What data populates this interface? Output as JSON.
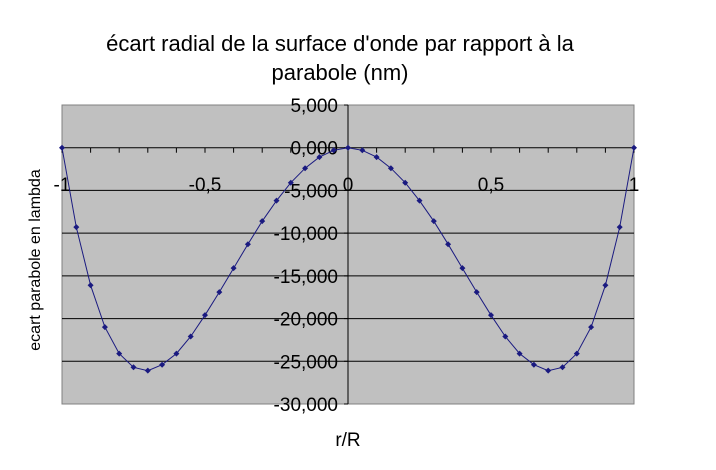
{
  "chart_data": {
    "type": "scatter",
    "title": "écart radial de la surface d'onde par rapport à la parabole (nm)",
    "title_lines": [
      "écart radial de la surface d'onde par rapport à la",
      "parabole (nm)"
    ],
    "xlabel": "r/R",
    "ylabel": "ecart parabole en lambda",
    "xlim": [
      -1,
      1
    ],
    "ylim": [
      -30000,
      5000
    ],
    "x_ticks": [
      {
        "value": -1,
        "label": "-1"
      },
      {
        "value": -0.5,
        "label": "-0,5"
      },
      {
        "value": 0,
        "label": "0"
      },
      {
        "value": 0.5,
        "label": "0,5"
      },
      {
        "value": 1,
        "label": "1"
      }
    ],
    "y_ticks": [
      {
        "value": 5000,
        "label": "5,000"
      },
      {
        "value": 0,
        "label": "0,000"
      },
      {
        "value": -5000,
        "label": "-5,000"
      },
      {
        "value": -10000,
        "label": "-10,000"
      },
      {
        "value": -15000,
        "label": "-15,000"
      },
      {
        "value": -20000,
        "label": "-20,000"
      },
      {
        "value": -25000,
        "label": "-25,000"
      },
      {
        "value": -30000,
        "label": "-30,000"
      }
    ],
    "grid": "horizontal",
    "legend": "none",
    "colors": {
      "series": "#1a1a80",
      "plot_background": "#c0c0c0",
      "gridline": "#000000"
    },
    "series": [
      {
        "x": [
          -1,
          -0.95,
          -0.9,
          -0.85,
          -0.8,
          -0.75,
          -0.7,
          -0.65,
          -0.6,
          -0.55,
          -0.5,
          -0.45,
          -0.4,
          -0.35,
          -0.3,
          -0.25,
          -0.2,
          -0.15,
          -0.1,
          -0.05,
          0,
          0.05,
          0.1,
          0.15,
          0.2,
          0.25,
          0.3,
          0.35,
          0.4,
          0.45,
          0.5,
          0.55,
          0.6,
          0.65,
          0.7,
          0.75,
          0.8,
          0.85,
          0.9,
          0.95,
          1
        ],
        "y": [
          0,
          -9300,
          -16100,
          -21000,
          -24100,
          -25700,
          -26100,
          -25400,
          -24100,
          -22100,
          -19600,
          -16900,
          -14100,
          -11300,
          -8600,
          -6200,
          -4100,
          -2400,
          -1100,
          -300,
          0,
          -300,
          -1100,
          -2400,
          -4100,
          -6200,
          -8600,
          -11300,
          -14100,
          -16900,
          -19600,
          -22100,
          -24100,
          -25400,
          -26100,
          -25700,
          -24100,
          -21000,
          -16100,
          -9300,
          0
        ]
      }
    ]
  }
}
